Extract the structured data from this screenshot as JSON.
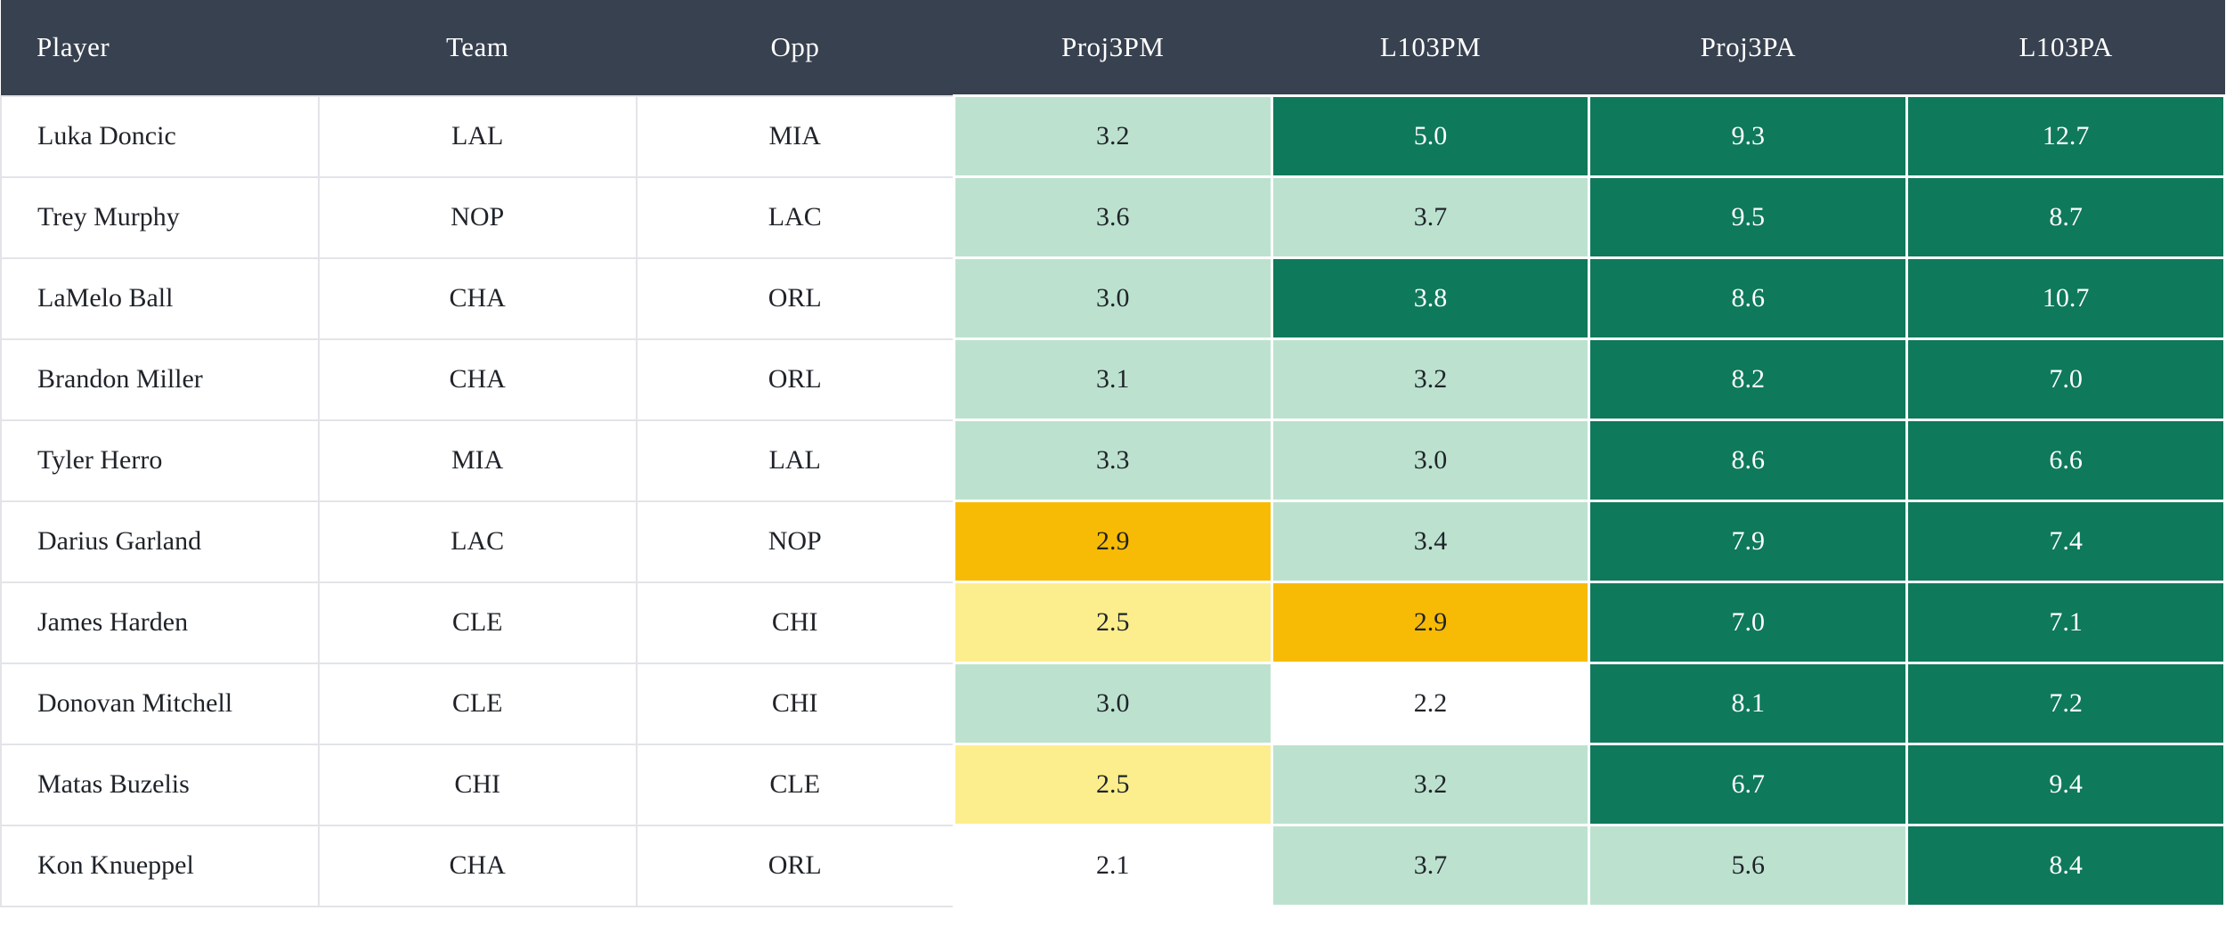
{
  "page": {
    "background": "#FFFFFF"
  },
  "colors": {
    "header_bg": "#38414F",
    "header_text": "#FFFFFF",
    "cell_bg": "#FFFFFF",
    "grid_line": "#E2E4E8",
    "cell_gap": "#FFFFFF",
    "dark_green": "#0F795B",
    "light_green": "#BCE2CF",
    "amber": "#F8BB05",
    "light_yellow": "#FCEE8D",
    "dark_text": "#1F2329",
    "light_text": "#FFFFFF"
  },
  "chart_data": {
    "type": "table",
    "legend": "heatmap-toned stat cells: dark_green = high, light_green = mid, light_yellow/amber = low, white = lowest",
    "columns": [
      {
        "label": "Player",
        "align": "left"
      },
      {
        "label": "Team",
        "align": "center"
      },
      {
        "label": "Opp",
        "align": "center"
      },
      {
        "label": "Proj3PM",
        "align": "center"
      },
      {
        "label": "L103PM",
        "align": "center"
      },
      {
        "label": "Proj3PA",
        "align": "center"
      },
      {
        "label": "L103PA",
        "align": "center"
      }
    ],
    "rows": [
      {
        "cells": [
          "Luka Doncic",
          "LAL",
          "MIA",
          "3.2",
          "5.0",
          "9.3",
          "12.7"
        ],
        "tones": [
          null,
          null,
          null,
          "light_green",
          "dark_green",
          "dark_green",
          "dark_green"
        ]
      },
      {
        "cells": [
          "Trey Murphy",
          "NOP",
          "LAC",
          "3.6",
          "3.7",
          "9.5",
          "8.7"
        ],
        "tones": [
          null,
          null,
          null,
          "light_green",
          "light_green",
          "dark_green",
          "dark_green"
        ]
      },
      {
        "cells": [
          "LaMelo Ball",
          "CHA",
          "ORL",
          "3.0",
          "3.8",
          "8.6",
          "10.7"
        ],
        "tones": [
          null,
          null,
          null,
          "light_green",
          "dark_green",
          "dark_green",
          "dark_green"
        ]
      },
      {
        "cells": [
          "Brandon Miller",
          "CHA",
          "ORL",
          "3.1",
          "3.2",
          "8.2",
          "7.0"
        ],
        "tones": [
          null,
          null,
          null,
          "light_green",
          "light_green",
          "dark_green",
          "dark_green"
        ]
      },
      {
        "cells": [
          "Tyler Herro",
          "MIA",
          "LAL",
          "3.3",
          "3.0",
          "8.6",
          "6.6"
        ],
        "tones": [
          null,
          null,
          null,
          "light_green",
          "light_green",
          "dark_green",
          "dark_green"
        ]
      },
      {
        "cells": [
          "Darius Garland",
          "LAC",
          "NOP",
          "2.9",
          "3.4",
          "7.9",
          "7.4"
        ],
        "tones": [
          null,
          null,
          null,
          "amber",
          "light_green",
          "dark_green",
          "dark_green"
        ]
      },
      {
        "cells": [
          "James Harden",
          "CLE",
          "CHI",
          "2.5",
          "2.9",
          "7.0",
          "7.1"
        ],
        "tones": [
          null,
          null,
          null,
          "light_yellow",
          "amber",
          "dark_green",
          "dark_green"
        ]
      },
      {
        "cells": [
          "Donovan Mitchell",
          "CLE",
          "CHI",
          "3.0",
          "2.2",
          "8.1",
          "7.2"
        ],
        "tones": [
          null,
          null,
          null,
          "light_green",
          "white",
          "dark_green",
          "dark_green"
        ]
      },
      {
        "cells": [
          "Matas Buzelis",
          "CHI",
          "CLE",
          "2.5",
          "3.2",
          "6.7",
          "9.4"
        ],
        "tones": [
          null,
          null,
          null,
          "light_yellow",
          "light_green",
          "dark_green",
          "dark_green"
        ]
      },
      {
        "cells": [
          "Kon Knueppel",
          "CHA",
          "ORL",
          "2.1",
          "3.7",
          "5.6",
          "8.4"
        ],
        "tones": [
          null,
          null,
          null,
          "white",
          "light_green",
          "light_green",
          "dark_green"
        ]
      }
    ]
  }
}
